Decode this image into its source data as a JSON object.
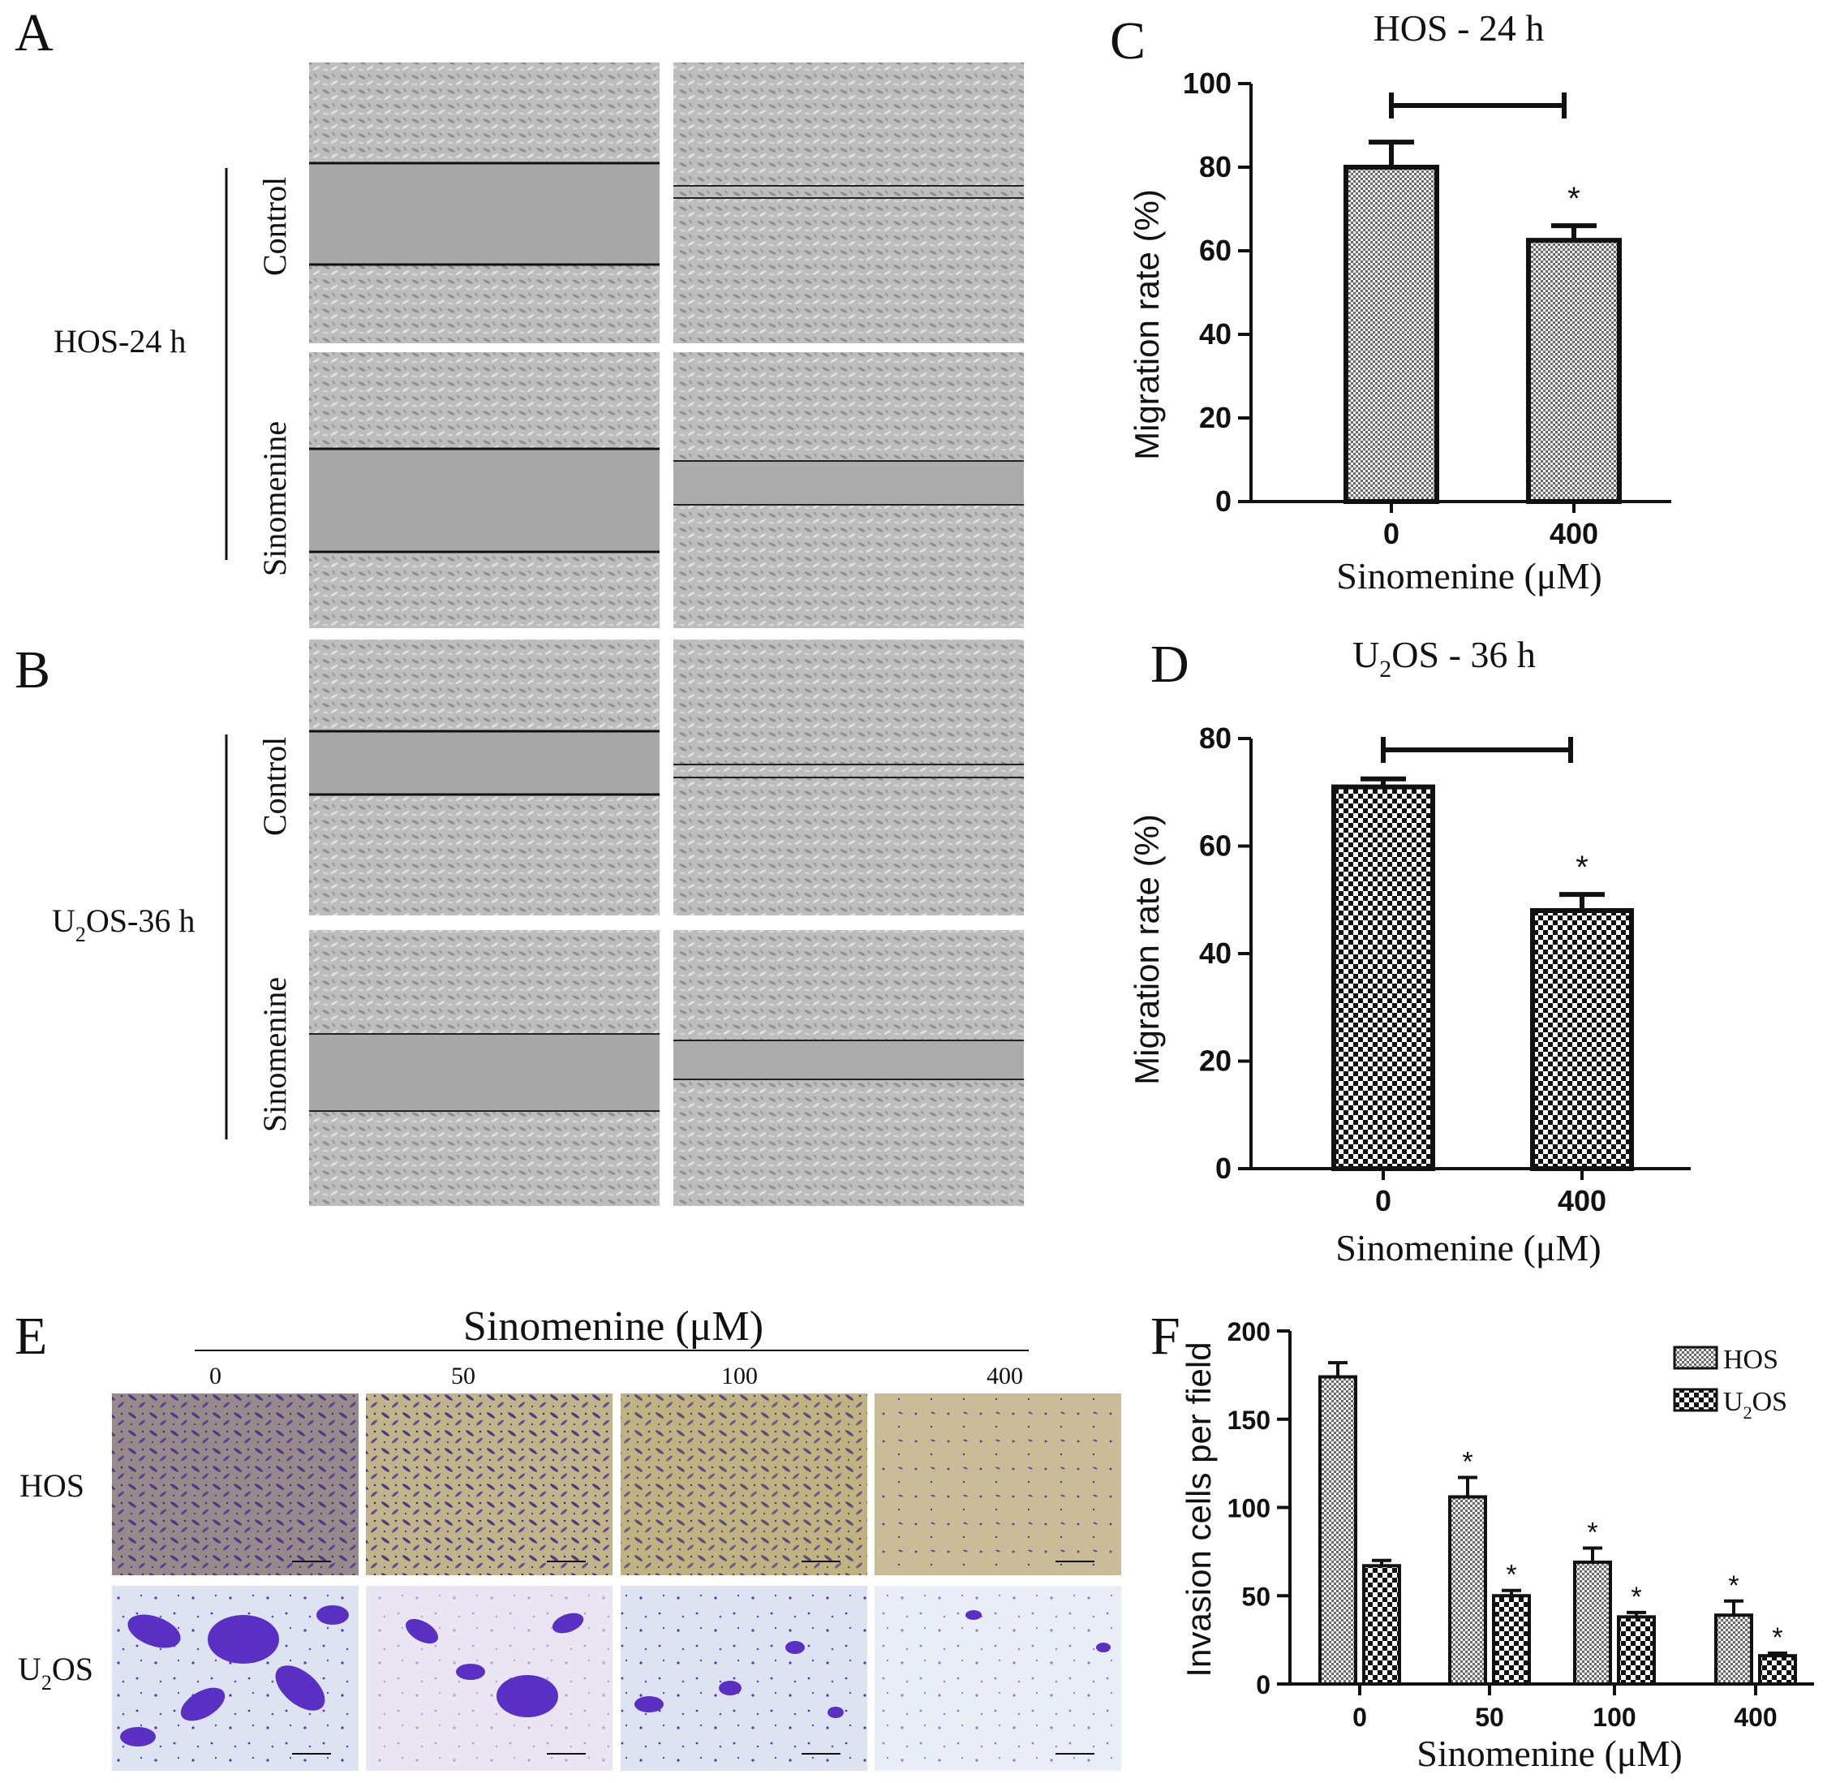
{
  "panel_labels": {
    "a": "A",
    "b": "B",
    "c": "C",
    "d": "D",
    "e": "E",
    "f": "F"
  },
  "panel_a": {
    "group_label": "HOS-24 h",
    "row_labels": [
      "Control",
      "Sinomenine"
    ]
  },
  "panel_b": {
    "group_label_main": "U",
    "group_label_sub": "2",
    "group_label_rest": "OS-36  h",
    "row_labels": [
      "Control",
      "Sinomenine"
    ]
  },
  "panel_e": {
    "header": "Sinomenine (μM)",
    "columns": [
      "0",
      "50",
      "100",
      "400"
    ],
    "row_hos": "HOS",
    "row_u2os_main": "U",
    "row_u2os_sub": "2",
    "row_u2os_rest": "OS"
  },
  "colors": {
    "micro_bg": "#b9b9b9",
    "micro_gap": "#a6a6a6",
    "hos_stain_bg": "#c7b98a",
    "hos_cells": "#4a3a8c",
    "u2os_stain_bg": "#dfe4f2",
    "u2os_cells": "#5a2fc4"
  },
  "chart_data": [
    {
      "type": "bar",
      "panel": "C",
      "title": "HOS - 24 h",
      "xlabel": "Sinomenine (μM)",
      "ylabel": "Migration rate (%)",
      "categories": [
        "0",
        "400"
      ],
      "values": [
        80,
        62.5
      ],
      "errors": [
        6,
        3.5
      ],
      "significance": [
        "",
        "*"
      ],
      "ylim": [
        0,
        100
      ],
      "yticks": [
        0,
        20,
        40,
        60,
        80,
        100
      ]
    },
    {
      "type": "bar",
      "panel": "D",
      "title_main": "U",
      "title_sub": "2",
      "title_rest": "OS - 36 h",
      "xlabel": "Sinomenine (μM)",
      "ylabel": "Migration rate (%)",
      "categories": [
        "0",
        "400"
      ],
      "values": [
        71,
        48
      ],
      "errors": [
        1.5,
        3
      ],
      "significance": [
        "",
        "*"
      ],
      "ylim": [
        0,
        80
      ],
      "yticks": [
        0,
        20,
        40,
        60,
        80
      ]
    },
    {
      "type": "bar",
      "panel": "F",
      "xlabel": "Sinomenine (μM)",
      "ylabel": "Invasion cells per field",
      "categories": [
        "0",
        "50",
        "100",
        "400"
      ],
      "ylim": [
        0,
        200
      ],
      "yticks": [
        0,
        50,
        100,
        150,
        200
      ],
      "legend_position": "top-right",
      "series": [
        {
          "name_main": "HOS",
          "values": [
            174,
            106,
            69,
            39
          ],
          "errors": [
            8,
            11,
            8,
            8
          ],
          "significance": [
            "",
            "*",
            "*",
            "*"
          ]
        },
        {
          "name_main": "U",
          "name_sub": "2",
          "name_rest": "OS",
          "values": [
            67,
            50,
            38,
            16
          ],
          "errors": [
            3,
            3,
            2.5,
            1.5
          ],
          "significance": [
            "",
            "*",
            "*",
            "*"
          ]
        }
      ]
    }
  ]
}
